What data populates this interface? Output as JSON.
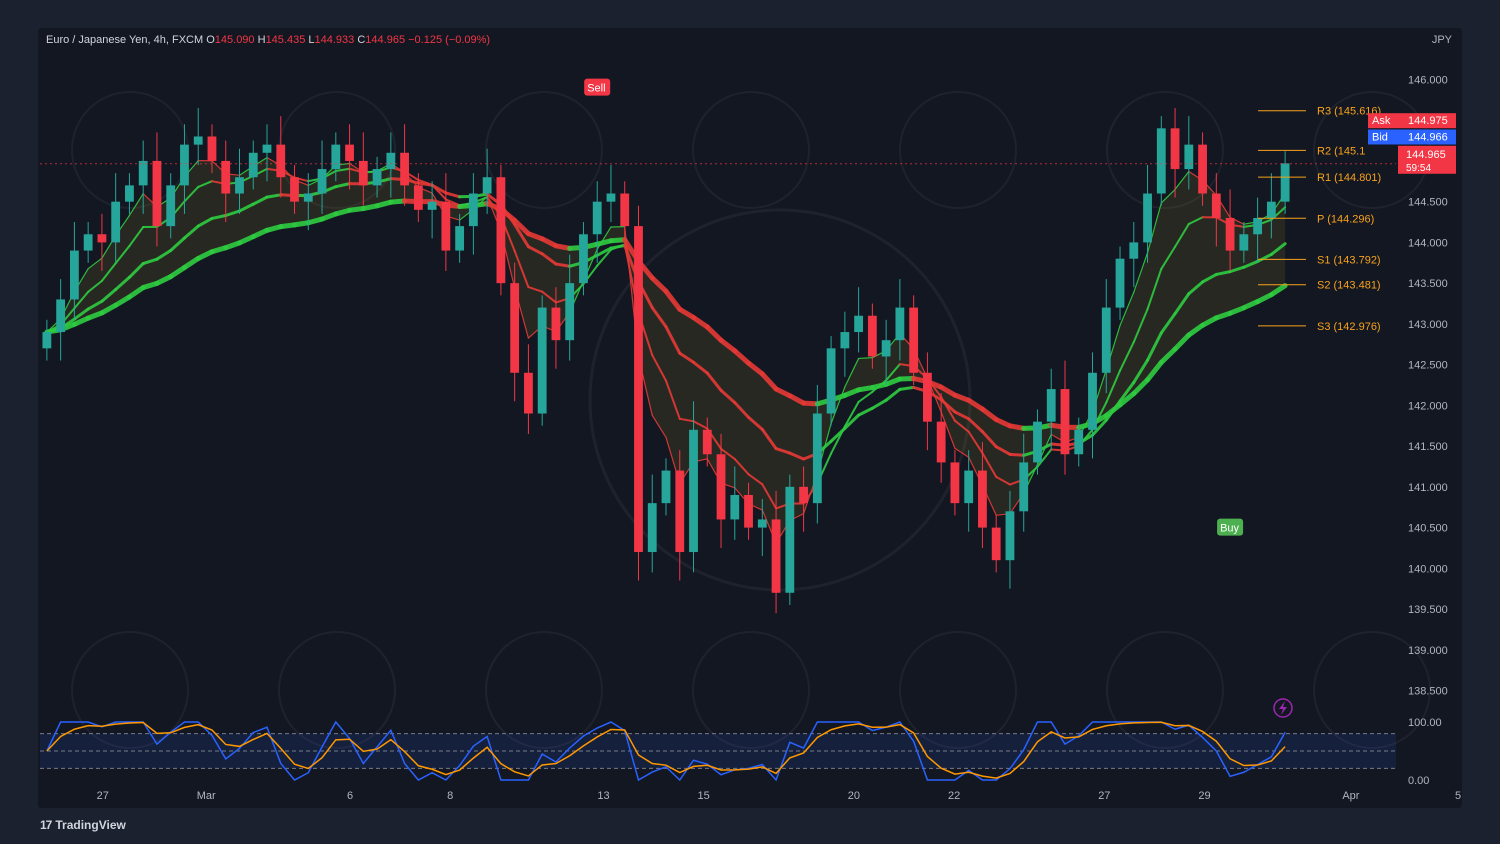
{
  "header": {
    "title": "Euro / Japanese Yen, 4h, FXCM",
    "o_label": "O",
    "open": "145.090",
    "h_label": "H",
    "high": "145.435",
    "l_label": "L",
    "low": "144.933",
    "c_label": "C",
    "close": "144.965",
    "change": "−0.125 (−0.09%)",
    "currency": "JPY"
  },
  "footer": {
    "brand": "TradingView"
  },
  "colors": {
    "background": "#131722",
    "bull": "#26a69a",
    "bear": "#f23645",
    "ema_green": "#2ecc40",
    "ema_red": "#e53935",
    "pivot_orange": "#f7a21b",
    "osc_blue": "#2962ff",
    "osc_orange": "#ff9800"
  },
  "chart_data": [
    {
      "type": "candlestick",
      "symbol": "EUR/JPY",
      "timeframe": "4h",
      "ylim": [
        138.2,
        146.3
      ],
      "y_ticks": [
        "146.000",
        "145.500",
        "145.000",
        "144.500",
        "144.000",
        "143.500",
        "143.000",
        "142.500",
        "142.000",
        "141.500",
        "141.000",
        "140.500",
        "140.000",
        "139.500",
        "139.000",
        "138.500"
      ],
      "x_ticks": [
        "27",
        "Mar",
        "6",
        "8",
        "13",
        "15",
        "20",
        "22",
        "27",
        "29",
        "Apr",
        "5"
      ],
      "closes": [
        142.9,
        143.3,
        143.9,
        144.1,
        144.0,
        144.5,
        144.7,
        145.0,
        144.2,
        144.7,
        145.2,
        145.3,
        145.0,
        144.6,
        144.8,
        145.1,
        145.2,
        144.8,
        144.5,
        144.6,
        144.9,
        145.2,
        145.0,
        144.7,
        144.9,
        145.1,
        144.7,
        144.4,
        144.5,
        143.9,
        144.2,
        144.6,
        144.8,
        143.5,
        142.4,
        141.9,
        143.2,
        142.8,
        143.5,
        144.1,
        144.5,
        144.6,
        144.2,
        140.2,
        140.8,
        141.2,
        140.2,
        141.7,
        141.4,
        140.6,
        140.9,
        140.5,
        140.6,
        139.7,
        141.0,
        140.8,
        141.9,
        142.7,
        142.9,
        143.1,
        142.6,
        142.8,
        143.2,
        142.4,
        141.8,
        141.3,
        140.8,
        141.2,
        140.5,
        140.1,
        140.7,
        141.3,
        141.8,
        142.2,
        141.4,
        141.7,
        142.4,
        143.2,
        143.8,
        144.0,
        144.6,
        145.4,
        144.9,
        145.2,
        144.6,
        144.3,
        143.9,
        144.1,
        144.3,
        144.5,
        144.97
      ],
      "series": [
        {
          "name": "Ask",
          "value": "144.975"
        },
        {
          "name": "Bid",
          "value": "144.966"
        },
        {
          "name": "Last",
          "value": "144.965",
          "countdown": "59:54"
        }
      ],
      "signals": [
        {
          "label": "Sell",
          "bar": 40,
          "price": 145.9
        },
        {
          "label": "Buy",
          "bar": 86,
          "price": 140.5
        }
      ],
      "pivots": [
        {
          "label": "R3 (145.616)",
          "value": 145.616
        },
        {
          "label": "R2 (145.1",
          "value": 145.13
        },
        {
          "label": "R1 (144.801)",
          "value": 144.801
        },
        {
          "label": "P (144.296)",
          "value": 144.296
        },
        {
          "label": "S1 (143.792)",
          "value": 143.792
        },
        {
          "label": "S2 (143.481)",
          "value": 143.481
        },
        {
          "label": "S3 (142.976)",
          "value": 142.976
        }
      ]
    },
    {
      "type": "line",
      "title": "",
      "ylim": [
        0,
        100
      ],
      "y_ticks": [
        "100.00",
        "0.00"
      ],
      "bands": [
        80,
        50,
        20
      ]
    }
  ]
}
